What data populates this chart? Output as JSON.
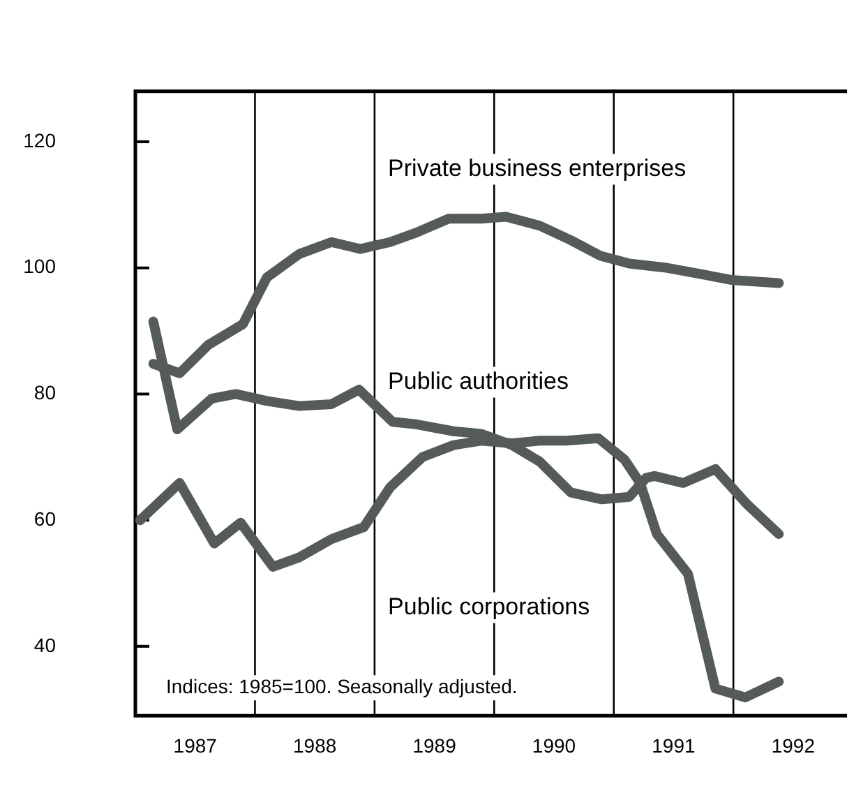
{
  "chart_data": {
    "type": "line",
    "xlim": [
      1987,
      1992.95
    ],
    "xticks": [
      {
        "value": 1987.5,
        "label": "1987"
      },
      {
        "value": 1988.5,
        "label": "1988"
      },
      {
        "value": 1989.5,
        "label": "1989"
      },
      {
        "value": 1990.5,
        "label": "1990"
      },
      {
        "value": 1991.5,
        "label": "1991"
      },
      {
        "value": 1992.5,
        "label": "1992"
      }
    ],
    "ylim": [
      29,
      128
    ],
    "yticks": [
      40,
      60,
      80,
      100,
      120
    ],
    "grid": false,
    "legend": false,
    "marker": "none",
    "line_style": "solid",
    "ref_lines": [
      {
        "axis": "x",
        "value": 1988,
        "color": "#000000"
      },
      {
        "axis": "x",
        "value": 1989,
        "color": "#000000"
      },
      {
        "axis": "x",
        "value": 1990,
        "color": "#000000"
      },
      {
        "axis": "x",
        "value": 1991,
        "color": "#000000"
      },
      {
        "axis": "x",
        "value": 1992,
        "color": "#000000"
      }
    ],
    "annotations": [
      "Indices: 1985=100. Seasonally adjusted."
    ],
    "series": [
      {
        "name": "Private business enterprises",
        "color": "#555a5a",
        "x": [
          1987.15,
          1987.37,
          1987.61,
          1987.9,
          1988.1,
          1988.37,
          1988.64,
          1988.88,
          1989.13,
          1989.35,
          1989.62,
          1989.89,
          1990.1,
          1990.38,
          1990.64,
          1990.89,
          1991.13,
          1991.45,
          1991.76,
          1991.98,
          1992.38
        ],
        "values": [
          84.8,
          83.3,
          87.8,
          91.1,
          98.5,
          102.2,
          104.1,
          103,
          104.1,
          105.6,
          107.8,
          107.8,
          108.1,
          106.7,
          104.4,
          101.9,
          100.7,
          100,
          98.9,
          98.1,
          97.6
        ]
      },
      {
        "name": "Public authorities",
        "color": "#555a5a",
        "x": [
          1987.15,
          1987.35,
          1987.64,
          1987.84,
          1988.1,
          1988.37,
          1988.64,
          1988.87,
          1989.15,
          1989.35,
          1989.66,
          1989.89,
          1990.15,
          1990.38,
          1990.64,
          1990.9,
          1991.13,
          1991.27,
          1991.34,
          1991.58,
          1991.85,
          1992.11,
          1992.38
        ],
        "values": [
          91.5,
          74.4,
          79.3,
          80,
          78.9,
          78.1,
          78.4,
          80.7,
          75.6,
          75.2,
          74.1,
          73.7,
          71.9,
          69.3,
          64.4,
          63.3,
          63.7,
          66.7,
          67,
          65.9,
          68.1,
          62.6,
          57.8
        ]
      },
      {
        "name": "Public corporations",
        "color": "#555a5a",
        "x": [
          1987.04,
          1987.37,
          1987.66,
          1987.88,
          1988.15,
          1988.37,
          1988.64,
          1988.91,
          1989.13,
          1989.4,
          1989.66,
          1989.89,
          1990.15,
          1990.38,
          1990.6,
          1990.87,
          1991.09,
          1991.22,
          1991.36,
          1991.62,
          1991.85,
          1992.1,
          1992.38
        ],
        "values": [
          60,
          65.9,
          56.3,
          59.6,
          52.6,
          54.1,
          57,
          58.9,
          65.2,
          70,
          71.9,
          72.6,
          72.2,
          72.6,
          72.6,
          73,
          69.6,
          65.9,
          57.8,
          51.5,
          33.3,
          31.9,
          34.4
        ]
      }
    ]
  }
}
